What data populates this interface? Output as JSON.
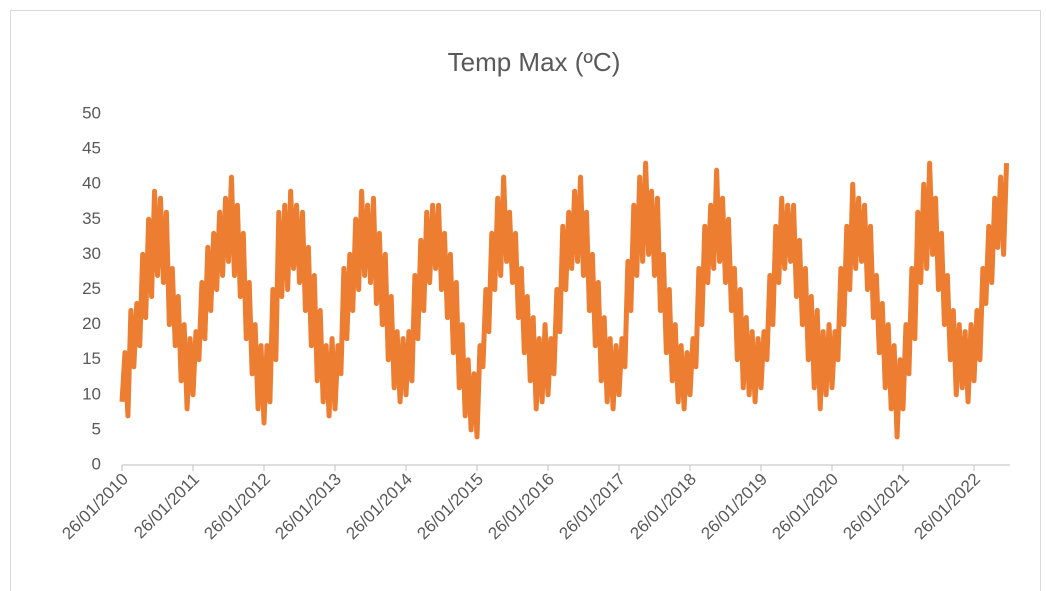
{
  "chart_data": {
    "type": "line",
    "title": "Temp Max (ºC)",
    "categories": [
      "26/01/2010",
      null,
      null,
      null,
      null,
      null,
      null,
      null,
      null,
      null,
      null,
      null,
      null,
      null,
      null,
      null,
      null,
      null,
      null,
      null,
      null,
      null,
      null,
      null,
      "26/01/2011",
      null,
      null,
      null,
      null,
      null,
      null,
      null,
      null,
      null,
      null,
      null,
      null,
      null,
      null,
      null,
      null,
      null,
      null,
      null,
      null,
      null,
      null,
      null,
      "26/01/2012",
      null,
      null,
      null,
      null,
      null,
      null,
      null,
      null,
      null,
      null,
      null,
      null,
      null,
      null,
      null,
      null,
      null,
      null,
      null,
      null,
      null,
      null,
      null,
      "26/01/2013",
      null,
      null,
      null,
      null,
      null,
      null,
      null,
      null,
      null,
      null,
      null,
      null,
      null,
      null,
      null,
      null,
      null,
      null,
      null,
      null,
      null,
      null,
      null,
      "26/01/2014",
      null,
      null,
      null,
      null,
      null,
      null,
      null,
      null,
      null,
      null,
      null,
      null,
      null,
      null,
      null,
      null,
      null,
      null,
      null,
      null,
      null,
      null,
      null,
      "26/01/2015",
      null,
      null,
      null,
      null,
      null,
      null,
      null,
      null,
      null,
      null,
      null,
      null,
      null,
      null,
      null,
      null,
      null,
      null,
      null,
      null,
      null,
      null,
      null,
      "26/01/2016",
      null,
      null,
      null,
      null,
      null,
      null,
      null,
      null,
      null,
      null,
      null,
      null,
      null,
      null,
      null,
      null,
      null,
      null,
      null,
      null,
      null,
      null,
      null,
      "26/01/2017",
      null,
      null,
      null,
      null,
      null,
      null,
      null,
      null,
      null,
      null,
      null,
      null,
      null,
      null,
      null,
      null,
      null,
      null,
      null,
      null,
      null,
      null,
      null,
      "26/01/2018",
      null,
      null,
      null,
      null,
      null,
      null,
      null,
      null,
      null,
      null,
      null,
      null,
      null,
      null,
      null,
      null,
      null,
      null,
      null,
      null,
      null,
      null,
      null,
      "26/01/2019",
      null,
      null,
      null,
      null,
      null,
      null,
      null,
      null,
      null,
      null,
      null,
      null,
      null,
      null,
      null,
      null,
      null,
      null,
      null,
      null,
      null,
      null,
      null,
      "26/01/2020",
      null,
      null,
      null,
      null,
      null,
      null,
      null,
      null,
      null,
      null,
      null,
      null,
      null,
      null,
      null,
      null,
      null,
      null,
      null,
      null,
      null,
      null,
      null,
      "26/01/2021",
      null,
      null,
      null,
      null,
      null,
      null,
      null,
      null,
      null,
      null,
      null,
      null,
      null,
      null,
      null,
      null,
      null,
      null,
      null,
      null,
      null,
      null,
      null,
      "26/01/2022",
      null,
      null,
      null,
      null,
      null,
      null,
      null,
      null,
      null,
      null,
      null
    ],
    "values": [
      9,
      16,
      7,
      22,
      14,
      23,
      17,
      30,
      21,
      35,
      24,
      39,
      27,
      38,
      26,
      36,
      20,
      28,
      17,
      24,
      12,
      20,
      8,
      18,
      10,
      19,
      15,
      26,
      18,
      31,
      22,
      33,
      25,
      36,
      27,
      38,
      29,
      41,
      27,
      37,
      24,
      33,
      18,
      26,
      13,
      20,
      8,
      17,
      6,
      17,
      9,
      25,
      15,
      36,
      24,
      37,
      25,
      39,
      28,
      37,
      26,
      36,
      22,
      31,
      17,
      27,
      12,
      22,
      9,
      17,
      7,
      18,
      8,
      17,
      13,
      28,
      18,
      30,
      22,
      35,
      25,
      39,
      27,
      37,
      26,
      38,
      23,
      33,
      20,
      30,
      15,
      24,
      11,
      19,
      9,
      18,
      10,
      19,
      12,
      27,
      18,
      32,
      22,
      36,
      26,
      37,
      28,
      37,
      25,
      33,
      21,
      30,
      16,
      26,
      11,
      20,
      7,
      15,
      5,
      13,
      4,
      17,
      14,
      25,
      19,
      33,
      25,
      38,
      27,
      41,
      29,
      36,
      26,
      33,
      21,
      28,
      16,
      24,
      12,
      21,
      8,
      18,
      9,
      20,
      10,
      18,
      13,
      25,
      19,
      34,
      25,
      36,
      28,
      39,
      29,
      41,
      27,
      36,
      22,
      30,
      17,
      26,
      12,
      21,
      9,
      18,
      8,
      17,
      10,
      18,
      14,
      29,
      22,
      37,
      27,
      41,
      29,
      43,
      30,
      39,
      27,
      38,
      22,
      30,
      16,
      25,
      12,
      20,
      9,
      17,
      8,
      16,
      10,
      18,
      14,
      28,
      20,
      34,
      26,
      37,
      28,
      42,
      29,
      38,
      26,
      35,
      22,
      28,
      15,
      25,
      11,
      21,
      10,
      19,
      9,
      18,
      11,
      19,
      15,
      27,
      20,
      34,
      26,
      38,
      28,
      37,
      29,
      37,
      24,
      32,
      20,
      28,
      15,
      24,
      11,
      22,
      8,
      19,
      10,
      20,
      11,
      19,
      15,
      28,
      20,
      34,
      25,
      40,
      28,
      38,
      29,
      37,
      25,
      34,
      21,
      27,
      16,
      23,
      11,
      20,
      8,
      17,
      4,
      15,
      8,
      20,
      13,
      28,
      18,
      36,
      26,
      40,
      28,
      43,
      30,
      38,
      25,
      33,
      20,
      27,
      15,
      22,
      10,
      20,
      11,
      19,
      9,
      20,
      12,
      22,
      15,
      28,
      23,
      34,
      26,
      38,
      31,
      41,
      30,
      43
    ],
    "color": "#ed7d31",
    "ylim": [
      0,
      50
    ],
    "yticks": [
      0,
      5,
      10,
      15,
      20,
      25,
      30,
      35,
      40,
      45,
      50
    ],
    "grid": false
  }
}
